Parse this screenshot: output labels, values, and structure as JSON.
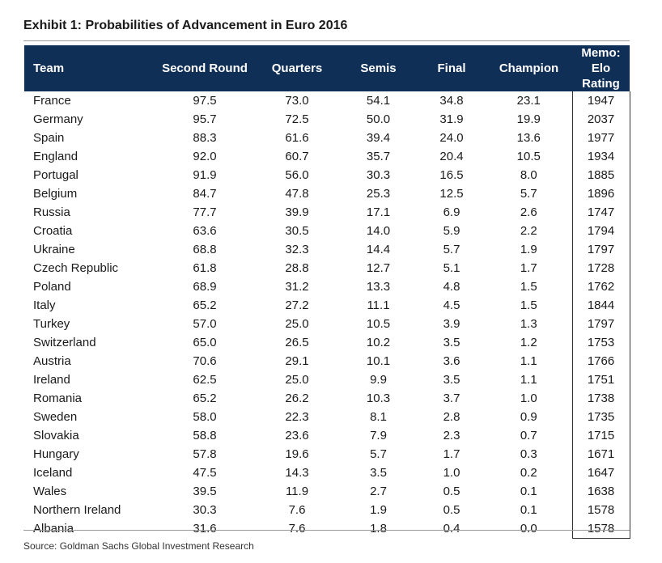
{
  "title": "Exhibit 1: Probabilities of Advancement in Euro 2016",
  "source": "Source: Goldman Sachs Global Investment Research",
  "colors": {
    "header_bg": "#0f2f57",
    "header_text": "#ffffff"
  },
  "chart_data": {
    "type": "table",
    "title": "Exhibit 1: Probabilities of Advancement in Euro 2016",
    "columns": [
      "Team",
      "Second Round",
      "Quarters",
      "Semis",
      "Final",
      "Champion",
      "Memo: Elo Rating"
    ],
    "rows": [
      [
        "France",
        "97.5",
        "73.0",
        "54.1",
        "34.8",
        "23.1",
        "1947"
      ],
      [
        "Germany",
        "95.7",
        "72.5",
        "50.0",
        "31.9",
        "19.9",
        "2037"
      ],
      [
        "Spain",
        "88.3",
        "61.6",
        "39.4",
        "24.0",
        "13.6",
        "1977"
      ],
      [
        "England",
        "92.0",
        "60.7",
        "35.7",
        "20.4",
        "10.5",
        "1934"
      ],
      [
        "Portugal",
        "91.9",
        "56.0",
        "30.3",
        "16.5",
        "8.0",
        "1885"
      ],
      [
        "Belgium",
        "84.7",
        "47.8",
        "25.3",
        "12.5",
        "5.7",
        "1896"
      ],
      [
        "Russia",
        "77.7",
        "39.9",
        "17.1",
        "6.9",
        "2.6",
        "1747"
      ],
      [
        "Croatia",
        "63.6",
        "30.5",
        "14.0",
        "5.9",
        "2.2",
        "1794"
      ],
      [
        "Ukraine",
        "68.8",
        "32.3",
        "14.4",
        "5.7",
        "1.9",
        "1797"
      ],
      [
        "Czech Republic",
        "61.8",
        "28.8",
        "12.7",
        "5.1",
        "1.7",
        "1728"
      ],
      [
        "Poland",
        "68.9",
        "31.2",
        "13.3",
        "4.8",
        "1.5",
        "1762"
      ],
      [
        "Italy",
        "65.2",
        "27.2",
        "11.1",
        "4.5",
        "1.5",
        "1844"
      ],
      [
        "Turkey",
        "57.0",
        "25.0",
        "10.5",
        "3.9",
        "1.3",
        "1797"
      ],
      [
        "Switzerland",
        "65.0",
        "26.5",
        "10.2",
        "3.5",
        "1.2",
        "1753"
      ],
      [
        "Austria",
        "70.6",
        "29.1",
        "10.1",
        "3.6",
        "1.1",
        "1766"
      ],
      [
        "Ireland",
        "62.5",
        "25.0",
        "9.9",
        "3.5",
        "1.1",
        "1751"
      ],
      [
        "Romania",
        "65.2",
        "26.2",
        "10.3",
        "3.7",
        "1.0",
        "1738"
      ],
      [
        "Sweden",
        "58.0",
        "22.3",
        "8.1",
        "2.8",
        "0.9",
        "1735"
      ],
      [
        "Slovakia",
        "58.8",
        "23.6",
        "7.9",
        "2.3",
        "0.7",
        "1715"
      ],
      [
        "Hungary",
        "57.8",
        "19.6",
        "5.7",
        "1.7",
        "0.3",
        "1671"
      ],
      [
        "Iceland",
        "47.5",
        "14.3",
        "3.5",
        "1.0",
        "0.2",
        "1647"
      ],
      [
        "Wales",
        "39.5",
        "11.9",
        "2.7",
        "0.5",
        "0.1",
        "1638"
      ],
      [
        "Northern Ireland",
        "30.3",
        "7.6",
        "1.9",
        "0.5",
        "0.1",
        "1578"
      ],
      [
        "Albania",
        "31.6",
        "7.6",
        "1.8",
        "0.4",
        "0.0",
        "1578"
      ]
    ]
  }
}
